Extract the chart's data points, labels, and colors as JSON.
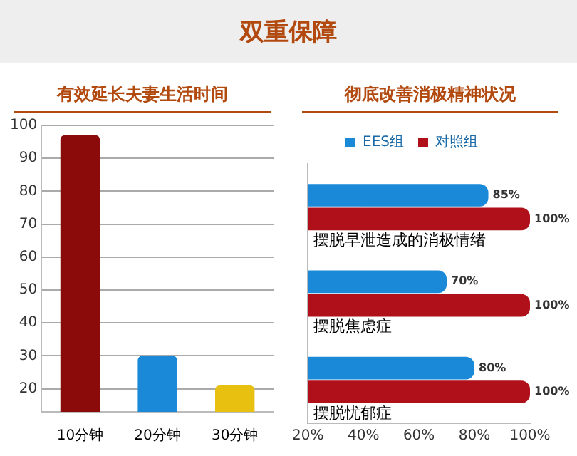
{
  "chart_data": [
    {
      "type": "bar",
      "title": "有效延长夫妻生活时间",
      "annotations": [
        "双重保障"
      ],
      "categories": [
        "10分钟",
        "20分钟",
        "30分钟"
      ],
      "values": [
        97,
        30,
        21
      ],
      "colors": [
        "#8b0a0a",
        "#1a8ad8",
        "#e8c010"
      ],
      "ylim": [
        13,
        100
      ],
      "yticks": [
        20,
        30,
        40,
        50,
        60,
        70,
        80,
        90,
        100
      ],
      "grid": "y"
    },
    {
      "type": "bar",
      "orientation": "horizontal",
      "title": "彻底改善消极精神状况",
      "categories": [
        "摆脱早泄造成的消极情绪",
        "摆脱焦虑症",
        "摆脱忧郁症"
      ],
      "legend": "top",
      "xlim": [
        20,
        100
      ],
      "xticks": [
        {
          "value": 20,
          "label": "20%"
        },
        {
          "value": 40,
          "label": "40%"
        },
        {
          "value": 60,
          "label": "60%"
        },
        {
          "value": 80,
          "label": "80%"
        },
        {
          "value": 100,
          "label": "100%"
        }
      ],
      "series": [
        {
          "name": "EES组",
          "color": "#1a8ad8",
          "values": [
            85,
            70,
            80
          ],
          "value_labels": [
            "85%",
            "70%",
            "80%"
          ]
        },
        {
          "name": "对照组",
          "color": "#b0101a",
          "values": [
            100,
            100,
            100
          ],
          "value_labels": [
            "100%",
            "100%",
            "100%"
          ]
        }
      ]
    }
  ]
}
